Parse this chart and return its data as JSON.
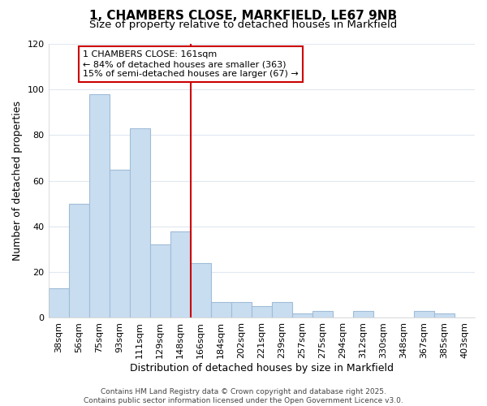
{
  "title_line1": "1, CHAMBERS CLOSE, MARKFIELD, LE67 9NB",
  "title_line2": "Size of property relative to detached houses in Markfield",
  "xlabel": "Distribution of detached houses by size in Markfield",
  "ylabel": "Number of detached properties",
  "categories": [
    "38sqm",
    "56sqm",
    "75sqm",
    "93sqm",
    "111sqm",
    "129sqm",
    "148sqm",
    "166sqm",
    "184sqm",
    "202sqm",
    "221sqm",
    "239sqm",
    "257sqm",
    "275sqm",
    "294sqm",
    "312sqm",
    "330sqm",
    "348sqm",
    "367sqm",
    "385sqm",
    "403sqm"
  ],
  "values": [
    13,
    50,
    98,
    65,
    83,
    32,
    38,
    24,
    7,
    7,
    5,
    7,
    2,
    3,
    0,
    3,
    0,
    0,
    3,
    2,
    0
  ],
  "bar_color": "#c9ddf0",
  "bar_edge_color": "#a0bcd8",
  "vline_color": "#cc0000",
  "annotation_text": "1 CHAMBERS CLOSE: 161sqm\n← 84% of detached houses are smaller (363)\n15% of semi-detached houses are larger (67) →",
  "annotation_box_color": "#ffffff",
  "annotation_box_edge_color": "#cc0000",
  "ylim": [
    0,
    120
  ],
  "yticks": [
    0,
    20,
    40,
    60,
    80,
    100,
    120
  ],
  "footer_text": "Contains HM Land Registry data © Crown copyright and database right 2025.\nContains public sector information licensed under the Open Government Licence v3.0.",
  "background_color": "#ffffff",
  "grid_color": "#e0e8f0",
  "title_fontsize": 11,
  "subtitle_fontsize": 9.5,
  "axis_label_fontsize": 9,
  "tick_fontsize": 8,
  "annotation_fontsize": 8,
  "footer_fontsize": 6.5
}
